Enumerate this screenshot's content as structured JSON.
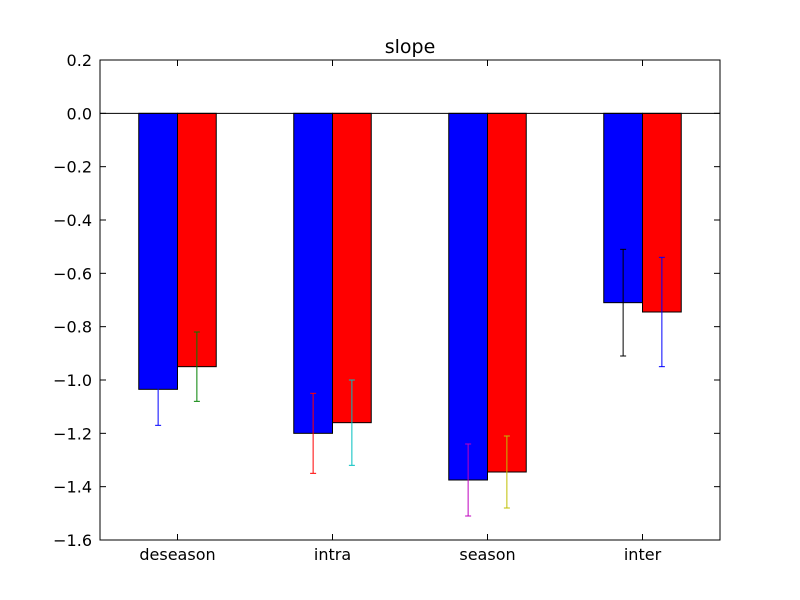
{
  "chart_data": {
    "type": "bar",
    "title": "slope",
    "xlabel": "",
    "ylabel": "",
    "categories": [
      "deseason",
      "intra",
      "season",
      "inter"
    ],
    "ylim": [
      -1.6,
      0.2
    ],
    "yticks": [
      0.2,
      0.0,
      -0.2,
      -0.4,
      -0.6,
      -0.8,
      -1.0,
      -1.2,
      -1.4,
      -1.6
    ],
    "ytick_labels": [
      "0.2",
      "0.0",
      "−0.2",
      "−0.4",
      "−0.6",
      "−0.8",
      "−1.0",
      "−1.2",
      "−1.4",
      "−1.6"
    ],
    "zero_line": true,
    "grid": false,
    "legend": "none",
    "series": [
      {
        "color": "#0000ff",
        "values": [
          -1.035,
          -1.2,
          -1.375,
          -0.71
        ],
        "errors": [
          0.135,
          0.15,
          0.135,
          0.2
        ],
        "error_colors": [
          "#0000ff",
          "#ff0000",
          "#bf00bf",
          "#000000"
        ]
      },
      {
        "color": "#ff0000",
        "values": [
          -0.95,
          -1.16,
          -1.345,
          -0.745
        ],
        "errors": [
          0.13,
          0.16,
          0.135,
          0.205
        ],
        "error_colors": [
          "#008000",
          "#00bfbf",
          "#bfbf00",
          "#0000ff"
        ]
      }
    ]
  }
}
